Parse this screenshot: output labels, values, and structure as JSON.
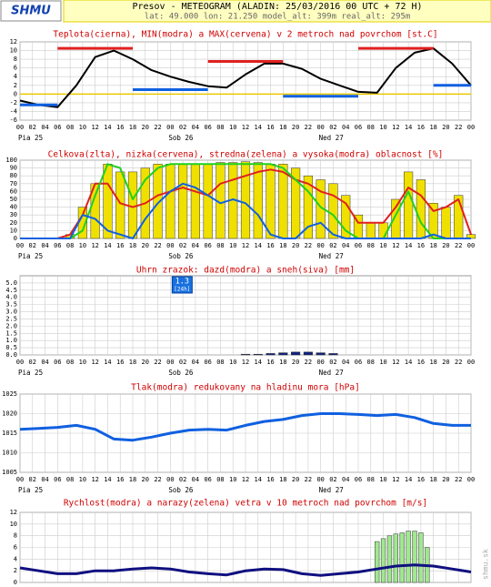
{
  "header": {
    "logo": "SHMU",
    "title": "Presov - METEOGRAM (ALADIN: 25/03/2016 00 UTC + 72 H)",
    "subtitle": "lat: 49.000  lon: 21.250  model_alt: 399m  real_alt: 295m",
    "watermark": "shmu.sk"
  },
  "time_axis": {
    "xlim": [
      0,
      72
    ],
    "xticks": [
      {
        "value": 0,
        "label": "00"
      },
      {
        "value": 2,
        "label": "02"
      },
      {
        "value": 4,
        "label": "04"
      },
      {
        "value": 6,
        "label": "06"
      },
      {
        "value": 8,
        "label": "08"
      },
      10,
      12,
      14,
      16,
      18,
      20,
      22,
      {
        "value": 24,
        "label": "00"
      },
      {
        "value": 26,
        "label": "02"
      },
      {
        "value": 28,
        "label": "04"
      },
      {
        "value": 30,
        "label": "06"
      },
      {
        "value": 32,
        "label": "08"
      },
      {
        "value": 34,
        "label": "10"
      },
      {
        "value": 36,
        "label": "12"
      },
      {
        "value": 38,
        "label": "14"
      },
      {
        "value": 40,
        "label": "16"
      },
      {
        "value": 42,
        "label": "18"
      },
      {
        "value": 44,
        "label": "20"
      },
      {
        "value": 46,
        "label": "22"
      },
      {
        "value": 48,
        "label": "00"
      },
      {
        "value": 50,
        "label": "02"
      },
      {
        "value": 52,
        "label": "04"
      },
      {
        "value": 54,
        "label": "06"
      },
      {
        "value": 56,
        "label": "08"
      },
      {
        "value": 58,
        "label": "10"
      },
      {
        "value": 60,
        "label": "12"
      },
      {
        "value": 62,
        "label": "14"
      },
      {
        "value": 64,
        "label": "16"
      },
      {
        "value": 66,
        "label": "18"
      },
      {
        "value": 68,
        "label": "20"
      },
      {
        "value": 70,
        "label": "22"
      },
      {
        "value": 72,
        "label": "00"
      }
    ],
    "day_labels": [
      "Pia 25",
      "Sob 26",
      "Ned 27"
    ]
  },
  "chart_data": [
    {
      "type": "line",
      "title": "Teplota(cierna), MIN(modra) a MAX(cervena) v 2 metroch nad povrchom [st.C]",
      "ylim": [
        -6,
        12
      ],
      "yticks": [
        -6,
        -4,
        -2,
        0,
        2,
        4,
        6,
        8,
        10,
        12
      ],
      "grid": true,
      "zero_line_color": "#e8c800",
      "series": [
        {
          "name": "Teplota",
          "type": "line",
          "color": "#000000",
          "x": [
            0,
            3,
            6,
            9,
            12,
            15,
            18,
            21,
            24,
            27,
            30,
            33,
            36,
            39,
            42,
            45,
            48,
            51,
            54,
            57,
            60,
            63,
            66,
            69,
            72
          ],
          "values": [
            -1.5,
            -2.5,
            -3,
            2,
            8.5,
            10,
            8,
            5.5,
            4,
            2.8,
            1.8,
            1.5,
            4.5,
            7,
            7,
            5.8,
            3.5,
            2,
            0.5,
            0.3,
            6,
            9.5,
            10.5,
            7,
            2
          ]
        },
        {
          "name": "MIN",
          "type": "segments",
          "color": "#1060e0",
          "x_ranges": [
            [
              0,
              6
            ],
            [
              18,
              30
            ],
            [
              42,
              54
            ],
            [
              66,
              72
            ]
          ],
          "values": [
            -2.5,
            1,
            -0.5,
            2
          ]
        },
        {
          "name": "MAX",
          "type": "segments",
          "color": "#e02020",
          "x_ranges": [
            [
              6,
              18
            ],
            [
              30,
              42
            ],
            [
              54,
              66
            ]
          ],
          "values": [
            10.5,
            7.5,
            10.5
          ]
        }
      ]
    },
    {
      "type": "bar",
      "title": "Celkova(zlta), nizka(cervena), stredna(zelena) a vysoka(modra) oblacnost [%]",
      "ylim": [
        0,
        100
      ],
      "yticks": [
        0,
        10,
        20,
        30,
        40,
        50,
        60,
        70,
        80,
        90,
        100
      ],
      "grid": true,
      "series": [
        {
          "name": "Celkova",
          "type": "bar",
          "color": "#f0e000",
          "x": [
            0,
            2,
            4,
            6,
            8,
            10,
            12,
            14,
            16,
            18,
            20,
            22,
            24,
            26,
            28,
            30,
            32,
            34,
            36,
            38,
            40,
            42,
            44,
            46,
            48,
            50,
            52,
            54,
            56,
            58,
            60,
            62,
            64,
            66,
            68,
            70,
            72
          ],
          "values": [
            0,
            0,
            0,
            0,
            5,
            40,
            70,
            95,
            85,
            85,
            90,
            95,
            95,
            95,
            95,
            95,
            97,
            97,
            98,
            97,
            95,
            95,
            90,
            80,
            75,
            70,
            55,
            30,
            20,
            20,
            50,
            85,
            75,
            45,
            40,
            55,
            5
          ]
        },
        {
          "name": "nizka",
          "type": "line",
          "color": "#e02020",
          "x": [
            0,
            2,
            4,
            6,
            8,
            10,
            12,
            14,
            16,
            18,
            20,
            22,
            24,
            26,
            28,
            30,
            32,
            34,
            36,
            38,
            40,
            42,
            44,
            46,
            48,
            50,
            52,
            54,
            56,
            58,
            60,
            62,
            64,
            66,
            68,
            70,
            72
          ],
          "values": [
            0,
            0,
            0,
            0,
            5,
            30,
            70,
            70,
            45,
            40,
            45,
            55,
            60,
            65,
            60,
            55,
            70,
            75,
            80,
            85,
            88,
            85,
            75,
            70,
            60,
            55,
            45,
            20,
            20,
            20,
            40,
            65,
            55,
            35,
            40,
            50,
            5
          ]
        },
        {
          "name": "stredna",
          "type": "line",
          "color": "#20d020",
          "x": [
            0,
            2,
            4,
            6,
            8,
            10,
            12,
            14,
            16,
            18,
            20,
            22,
            24,
            26,
            28,
            30,
            32,
            34,
            36,
            38,
            40,
            42,
            44,
            46,
            48,
            50,
            52,
            54,
            56,
            58,
            60,
            62,
            64,
            66,
            68,
            70,
            72
          ],
          "values": [
            0,
            0,
            0,
            0,
            0,
            10,
            55,
            95,
            90,
            50,
            75,
            90,
            95,
            95,
            95,
            95,
            95,
            95,
            95,
            95,
            95,
            90,
            75,
            60,
            40,
            30,
            10,
            0,
            0,
            0,
            30,
            60,
            20,
            0,
            0,
            0,
            0
          ]
        },
        {
          "name": "vysoka",
          "type": "line",
          "color": "#1060e0",
          "x": [
            0,
            2,
            4,
            6,
            8,
            10,
            12,
            14,
            16,
            18,
            20,
            22,
            24,
            26,
            28,
            30,
            32,
            34,
            36,
            38,
            40,
            42,
            44,
            46,
            48,
            50,
            52,
            54,
            56,
            58,
            60,
            62,
            64,
            66,
            68,
            70,
            72
          ],
          "values": [
            0,
            0,
            0,
            0,
            0,
            30,
            25,
            10,
            5,
            0,
            25,
            45,
            60,
            70,
            65,
            55,
            45,
            50,
            45,
            30,
            5,
            0,
            0,
            15,
            20,
            5,
            0,
            0,
            0,
            0,
            0,
            0,
            0,
            5,
            0,
            0,
            0
          ]
        }
      ]
    },
    {
      "type": "bar",
      "title": "Uhrn zrazok: dazd(modra) a sneh(siva) [mm]",
      "ylim": [
        0,
        5.5
      ],
      "yticks": [
        {
          "value": 0,
          "label": "0.0"
        },
        0.5,
        {
          "value": 1,
          "label": "1.0"
        },
        1.5,
        {
          "value": 2,
          "label": "2.0"
        },
        2.5,
        {
          "value": 3,
          "label": "3.0"
        },
        3.5,
        {
          "value": 4,
          "label": "4.0"
        },
        4.5,
        {
          "value": 5,
          "label": "5.0"
        }
      ],
      "grid": true,
      "annotation": {
        "text": "1.3",
        "sub": "[24h]"
      },
      "series": [
        {
          "name": "dazd",
          "type": "bar",
          "color": "#102080",
          "x": [
            36,
            38,
            40,
            42,
            44,
            46,
            48,
            50
          ],
          "values": [
            0.05,
            0.05,
            0.1,
            0.15,
            0.2,
            0.2,
            0.15,
            0.1
          ]
        }
      ]
    },
    {
      "type": "line",
      "title": "Tlak(modra) redukovany na hladinu mora [hPa]",
      "ylim": [
        1005,
        1025
      ],
      "yticks": [
        1005,
        1010,
        1015,
        1020,
        1025
      ],
      "grid": true,
      "series": [
        {
          "name": "Tlak",
          "type": "line",
          "color": "#1060e0",
          "width": 3,
          "x": [
            0,
            3,
            6,
            9,
            12,
            15,
            18,
            21,
            24,
            27,
            30,
            33,
            36,
            39,
            42,
            45,
            48,
            51,
            54,
            57,
            60,
            63,
            66,
            69,
            72
          ],
          "values": [
            1016,
            1016.2,
            1016.5,
            1017,
            1016,
            1013.5,
            1013.2,
            1014,
            1015,
            1015.8,
            1016,
            1015.8,
            1017,
            1018,
            1018.5,
            1019.5,
            1020,
            1020,
            1019.8,
            1019.5,
            1019.8,
            1019,
            1017.5,
            1017,
            1017
          ]
        }
      ]
    },
    {
      "type": "bar",
      "title": "Rychlost(modra) a narazy(zelena) vetra v 10 metroch nad povrchom [m/s]",
      "ylim": [
        0,
        12
      ],
      "yticks": [
        0,
        2,
        4,
        6,
        8,
        10,
        12
      ],
      "grid": true,
      "series": [
        {
          "name": "narazy",
          "type": "bar",
          "color": "#a0e890",
          "x": [
            57,
            58,
            59,
            60,
            61,
            62,
            63,
            64,
            65
          ],
          "values": [
            7,
            7.5,
            8,
            8.3,
            8.5,
            8.8,
            8.8,
            8.5,
            6
          ]
        },
        {
          "name": "Rychlost",
          "type": "line",
          "color": "#101080",
          "width": 3,
          "x": [
            0,
            3,
            6,
            9,
            12,
            15,
            18,
            21,
            24,
            27,
            30,
            33,
            36,
            39,
            42,
            45,
            48,
            51,
            54,
            57,
            60,
            63,
            66,
            69,
            72
          ],
          "values": [
            2.5,
            2,
            1.5,
            1.5,
            2,
            2,
            2.3,
            2.5,
            2.3,
            1.8,
            1.5,
            1.3,
            2,
            2.3,
            2.2,
            1.5,
            1.2,
            1.5,
            1.8,
            2.3,
            2.8,
            3,
            2.8,
            2.3,
            1.8
          ]
        }
      ]
    }
  ]
}
